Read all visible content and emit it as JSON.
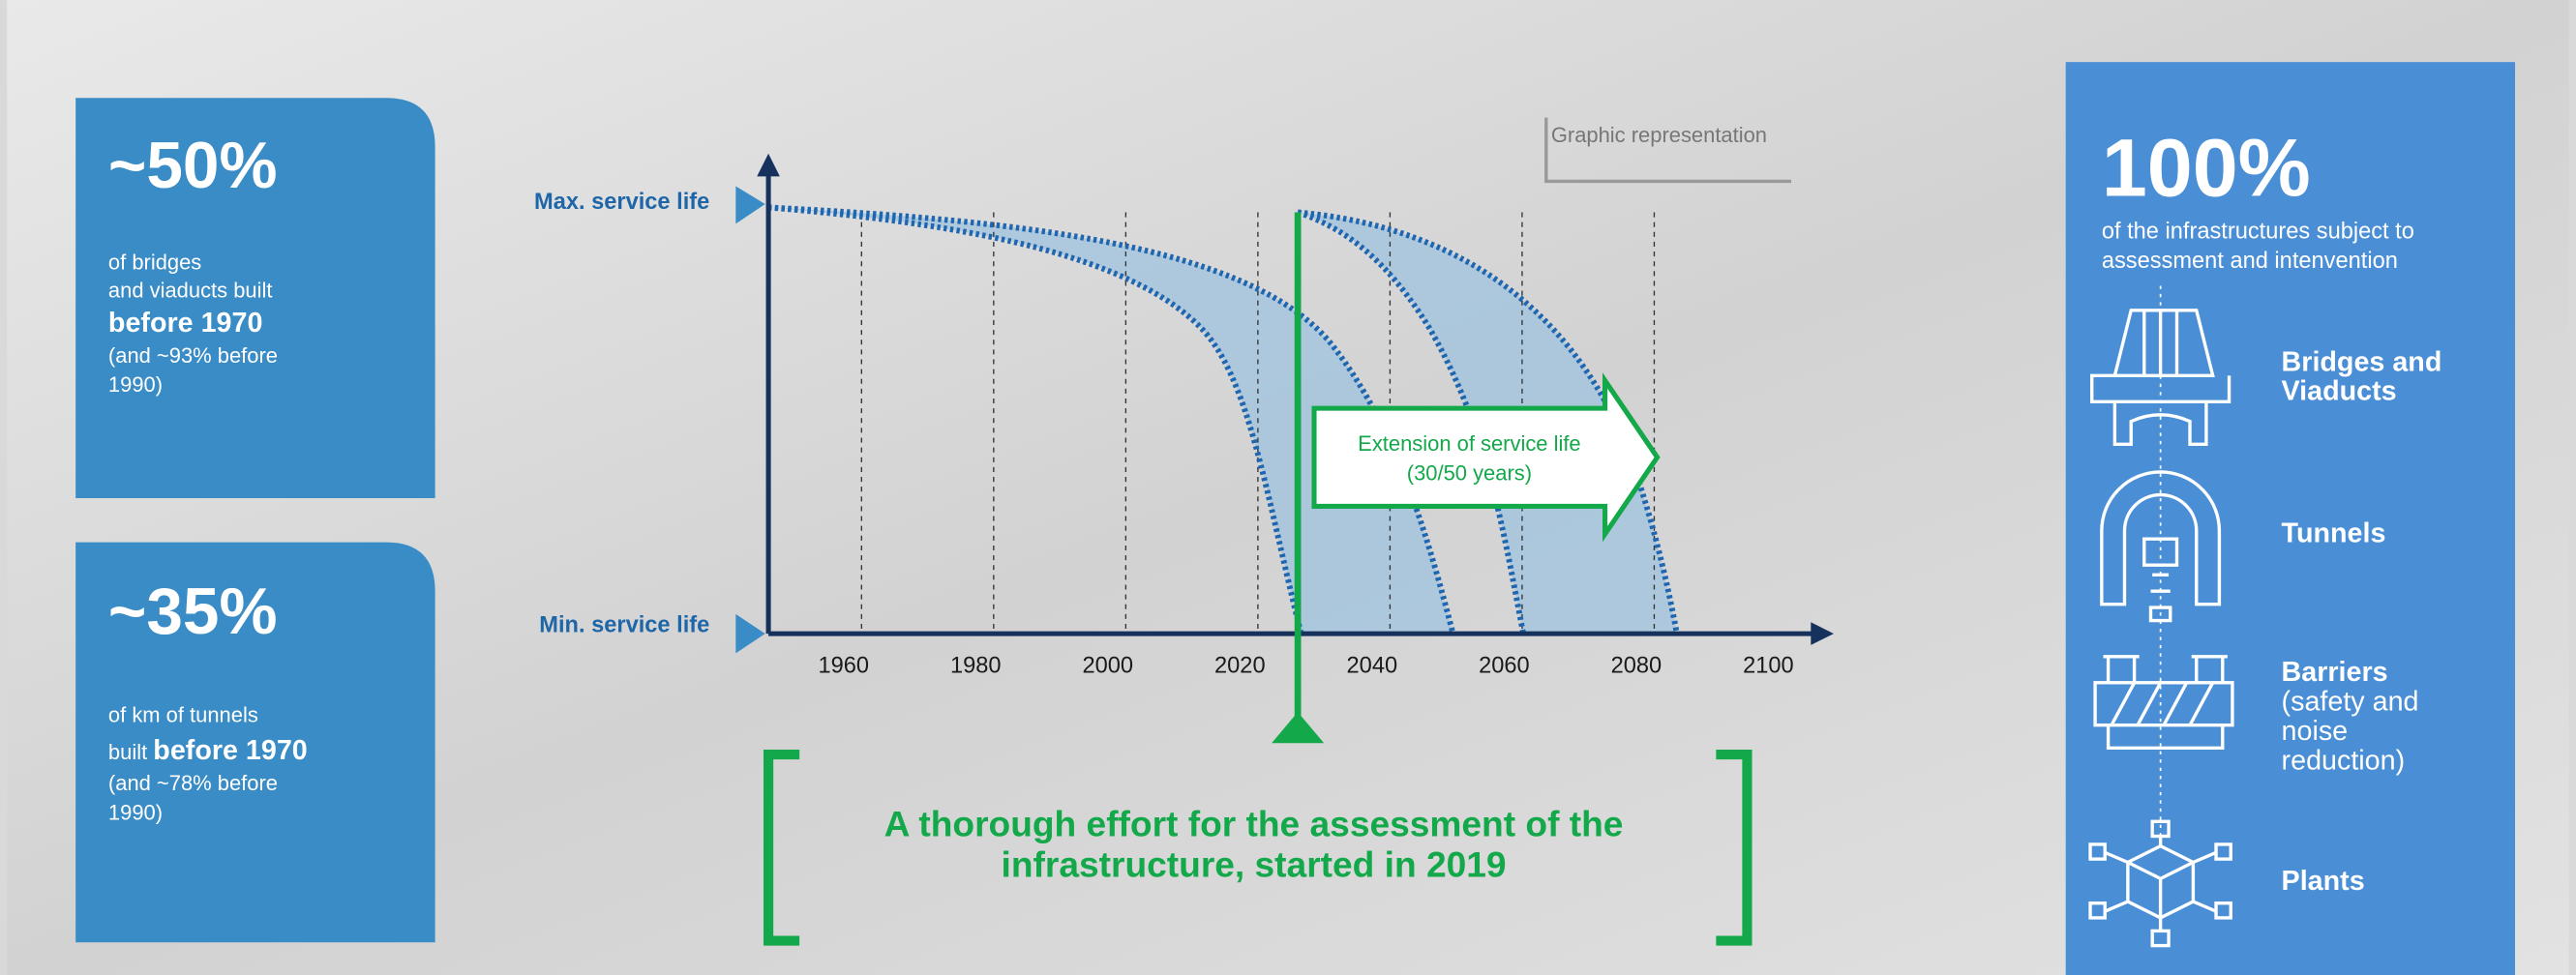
{
  "left_cards": [
    {
      "value": "~50%",
      "lines": [
        "of bridges",
        "and viaducts built"
      ],
      "highlight": "before 1970",
      "note_lines": [
        "(and ~93% before",
        "1990)"
      ]
    },
    {
      "value": "~35%",
      "lines": [
        "of km of tunnels"
      ],
      "prefix": "built",
      "highlight": "before 1970",
      "note_lines": [
        "(and ~78% before",
        "1990)"
      ]
    }
  ],
  "chart": {
    "note": "Graphic representation",
    "max_label": "Max. service life",
    "min_label": "Min. service life",
    "xticks": [
      1960,
      1980,
      2000,
      2020,
      2040,
      2060,
      2080,
      2100
    ],
    "arrow_lines": [
      "Extension of service life",
      "(30/50 years)"
    ]
  },
  "banner_lines": [
    "A thorough effort for the assessment of the",
    "infrastructure, started in 2019"
  ],
  "right_panel": {
    "value": "100%",
    "lines": [
      "of the infrastructures subject to",
      "assessment and intenvention"
    ],
    "items": [
      {
        "lines": [
          "Bridges and",
          "Viaducts"
        ]
      },
      {
        "lines": [
          "Tunnels"
        ]
      },
      {
        "lines": [
          "Barriers",
          "(safety and",
          "noise",
          "reduction)"
        ]
      },
      {
        "lines": [
          "Plants"
        ]
      }
    ]
  }
}
